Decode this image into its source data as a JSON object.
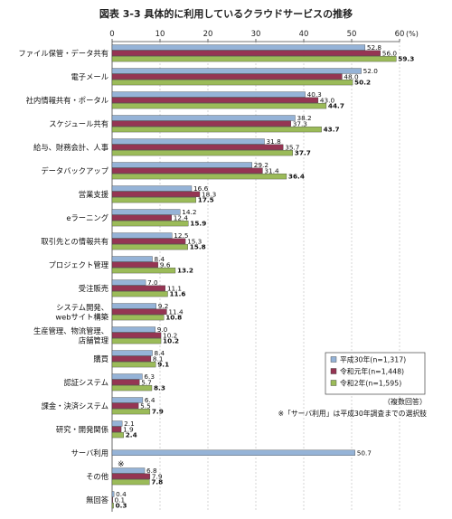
{
  "chart_data": {
    "type": "bar",
    "orientation": "horizontal",
    "title": "図表 3-3 具体的に利用しているクラウドサービスの推移",
    "xunit": "(%)",
    "xlim": [
      0,
      60
    ],
    "xticks": [
      0,
      10,
      20,
      30,
      40,
      50,
      60
    ],
    "grid": "vertical-dashed",
    "categories": [
      "ファイル保管・データ共有",
      "電子メール",
      "社内情報共有・ポータル",
      "スケジュール共有",
      "給与、財務会計、人事",
      "データバックアップ",
      "営業支援",
      "eラーニング",
      "取引先との情報共有",
      "プロジェクト管理",
      "受注販売",
      "システム開発、webサイト構築",
      "生産管理、物流管理、店舗管理",
      "購買",
      "認証システム",
      "課金・決済システム",
      "研究・開発関係",
      "サーバ利用",
      "その他",
      "無回答"
    ],
    "category_lines": [
      [
        "ファイル保管・データ共有"
      ],
      [
        "電子メール"
      ],
      [
        "社内情報共有・ポータル"
      ],
      [
        "スケジュール共有"
      ],
      [
        "給与、財務会計、人事"
      ],
      [
        "データバックアップ"
      ],
      [
        "営業支援"
      ],
      [
        "eラーニング"
      ],
      [
        "取引先との情報共有"
      ],
      [
        "プロジェクト管理"
      ],
      [
        "受注販売"
      ],
      [
        "システム開発、",
        "webサイト構築"
      ],
      [
        "生産管理、物流管理、",
        "店舗管理"
      ],
      [
        "購買"
      ],
      [
        "認証システム"
      ],
      [
        "課金・決済システム"
      ],
      [
        "研究・開発関係"
      ],
      [
        "サーバ利用"
      ],
      [
        "その他"
      ],
      [
        "無回答"
      ]
    ],
    "series": [
      {
        "name": "平成30年(n=1,317)",
        "color": "#95b3d7",
        "values": [
          52.8,
          52.0,
          40.3,
          38.2,
          31.8,
          29.2,
          16.6,
          14.2,
          12.5,
          8.4,
          7.0,
          9.2,
          9.0,
          8.4,
          6.3,
          6.4,
          2.1,
          50.7,
          6.8,
          0.4
        ],
        "labels": [
          "52.8",
          "52.0",
          "40.3",
          "38.2",
          "31.8",
          "29.2",
          "16.6",
          "14.2",
          "12.5",
          "8.4",
          "7.0",
          "9.2",
          "9.0",
          "8.4",
          "6.3",
          "6.4",
          "2.1",
          "50.7",
          "6.8",
          "0.4"
        ]
      },
      {
        "name": "令和元年(n=1,448)",
        "color": "#953553",
        "values": [
          56.0,
          48.0,
          43.0,
          37.3,
          35.7,
          31.4,
          18.3,
          12.4,
          15.3,
          9.6,
          11.1,
          11.4,
          10.2,
          8.1,
          5.7,
          5.5,
          1.9,
          null,
          7.9,
          0.1
        ],
        "labels": [
          "56.0",
          "48.0",
          "43.0",
          "37.3",
          "35.7",
          "31.4",
          "18.3",
          "12.4",
          "15.3",
          "9.6",
          "11.1",
          "11.4",
          "10.2",
          "8.1",
          "5.7",
          "5.5",
          "1.9",
          "",
          "7.9",
          "0.1"
        ]
      },
      {
        "name": "令和2年(n=1,595)",
        "color": "#9bbb59",
        "values": [
          59.3,
          50.2,
          44.7,
          43.7,
          37.7,
          36.4,
          17.5,
          15.9,
          15.8,
          13.2,
          11.6,
          10.8,
          10.2,
          9.1,
          8.3,
          7.9,
          2.4,
          null,
          7.8,
          0.3
        ],
        "labels": [
          "59.3",
          "50.2",
          "44.7",
          "43.7",
          "37.7",
          "36.4",
          "17.5",
          "15.9",
          "15.8",
          "13.2",
          "11.6",
          "10.8",
          "10.2",
          "9.1",
          "8.3",
          "7.9",
          "2.4",
          "",
          "7.8",
          "0.3"
        ]
      }
    ],
    "markers": [
      {
        "category_index": 17,
        "text": "※"
      }
    ],
    "legend_placement": "bottom-right",
    "notes": [
      "（複数回答）",
      "※「サーバ利用」は平成30年調査までの選択肢"
    ]
  }
}
